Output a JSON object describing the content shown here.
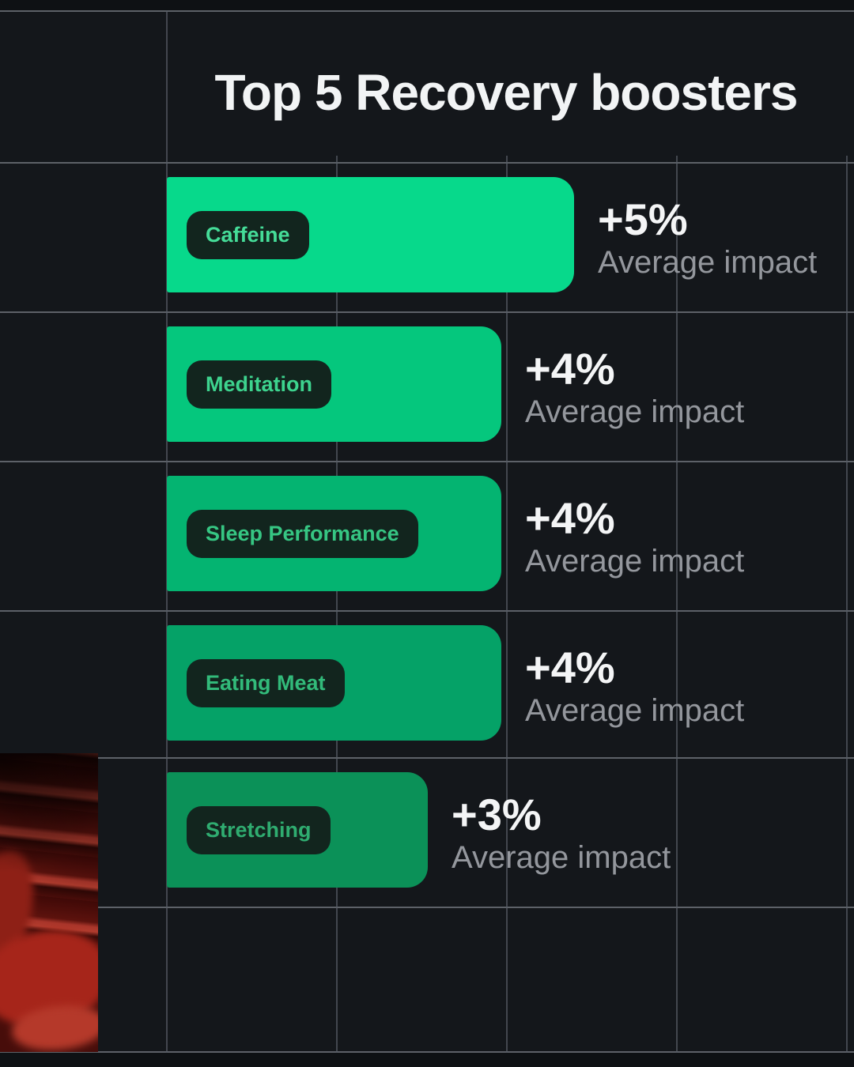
{
  "title": "Top 5 Recovery boosters",
  "chart_data": {
    "type": "bar",
    "orientation": "horizontal",
    "title": "Top 5 Recovery boosters",
    "categories": [
      "Caffeine",
      "Meditation",
      "Sleep Performance",
      "Eating Meat",
      "Stretching"
    ],
    "values": [
      5,
      4,
      4,
      4,
      3
    ],
    "value_labels": [
      "+5%",
      "+4%",
      "+4%",
      "+4%",
      "+3%"
    ],
    "impact_label": "Average impact",
    "unit": "percent average impact",
    "xlim": [
      0,
      5
    ],
    "grid": true,
    "bar_colors": [
      "#07d98b",
      "#05c77d",
      "#04b471",
      "#05a267",
      "#0b9158"
    ],
    "pill_text_colors": [
      "#45dc98",
      "#3dd38e",
      "#36c683",
      "#32ba7a",
      "#2fac70"
    ],
    "pill_background": "#12251e"
  },
  "colors": {
    "background": "#14171b",
    "edge_band": "#0e1114",
    "grid_horizontal": "#6f747c",
    "grid_vertical": "#575d65",
    "title_text": "#f2f4f5",
    "value_text": "#f4f5f6",
    "impact_text": "#94979d",
    "photo_red_base": "#470d0a",
    "photo_red_ridge": "#a9352a"
  },
  "photo": {
    "description": "red-light sauna photo, bottom-left corner"
  }
}
